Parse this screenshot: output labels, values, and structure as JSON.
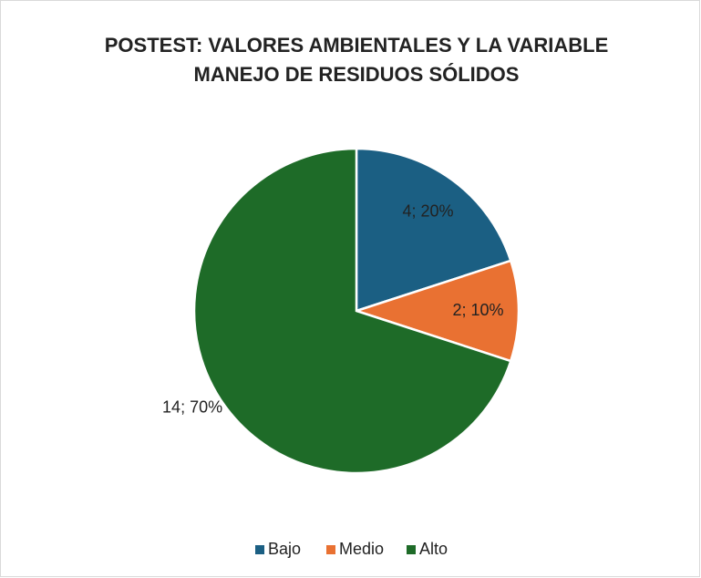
{
  "chart_data": {
    "type": "pie",
    "title": [
      "POSTEST: VALORES AMBIENTALES Y LA VARIABLE",
      "MANEJO DE  RESIDUOS SÓLIDOS"
    ],
    "categories": [
      "Bajo",
      "Medio",
      "Alto"
    ],
    "values": [
      4,
      2,
      14
    ],
    "value_labels": [
      "4; 20%",
      "2; 10%",
      "14; 70%"
    ],
    "colors": [
      "#1b5f83",
      "#e97132",
      "#1e6b28"
    ],
    "legend": "bottom"
  }
}
